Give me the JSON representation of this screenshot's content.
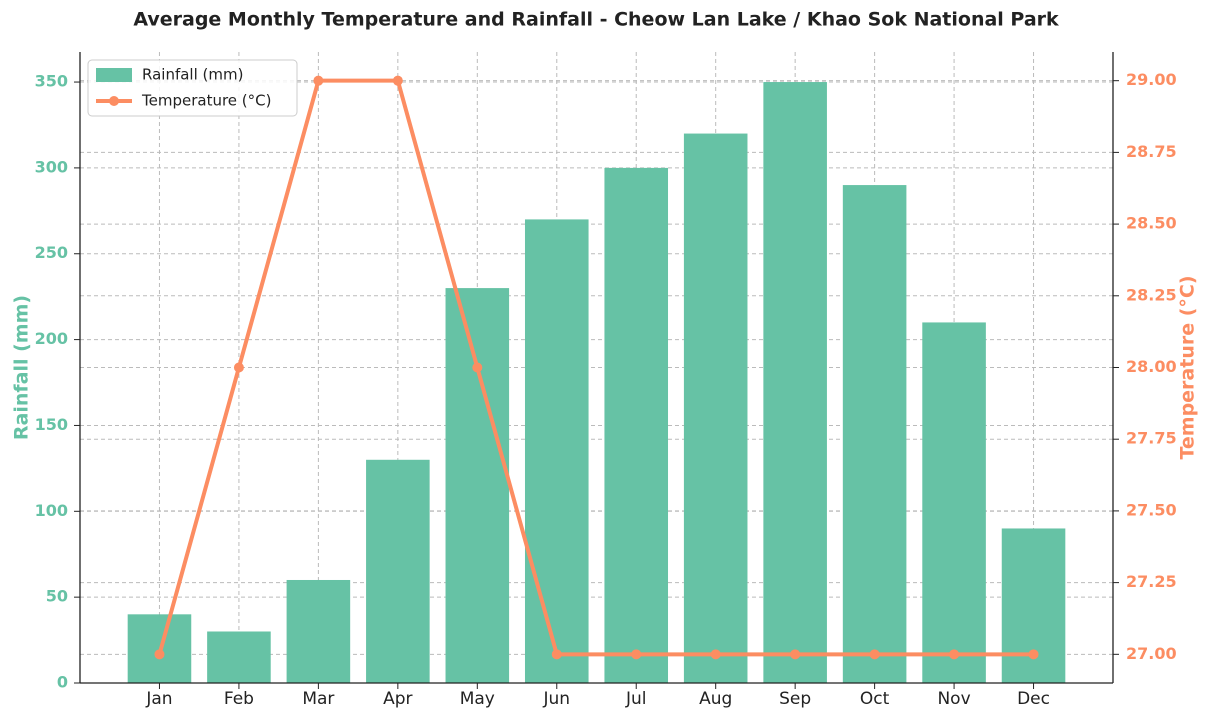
{
  "chart_data": {
    "type": "combo",
    "title": "Average Monthly Temperature and Rainfall - Cheow Lan Lake / Khao Sok National Park",
    "categories": [
      "Jan",
      "Feb",
      "Mar",
      "Apr",
      "May",
      "Jun",
      "Jul",
      "Aug",
      "Sep",
      "Oct",
      "Nov",
      "Dec"
    ],
    "series": [
      {
        "name": "Rainfall (mm)",
        "type": "bar",
        "color": "#66c2a5",
        "values": [
          40,
          30,
          60,
          130,
          230,
          270,
          300,
          320,
          350,
          290,
          210,
          90
        ]
      },
      {
        "name": "Temperature (°C)",
        "type": "line",
        "axis": "y2",
        "color": "#fc8d62",
        "values": [
          27,
          28,
          29,
          29,
          28,
          27,
          27,
          27,
          27,
          27,
          27,
          27
        ]
      }
    ],
    "ylabel": "Rainfall (mm)",
    "y2label": "Temperature (°C)",
    "ylim": [
      0,
      367.5
    ],
    "yticks": [
      0,
      50,
      100,
      150,
      200,
      250,
      300,
      350
    ],
    "y2lim": [
      26.9,
      29.1
    ],
    "y2ticks": [
      {
        "value": 27,
        "label": "27.00"
      },
      {
        "value": 27.25,
        "label": "27.25"
      },
      {
        "value": 27.5,
        "label": "27.50"
      },
      {
        "value": 27.75,
        "label": "27.75"
      },
      {
        "value": 28,
        "label": "28.00"
      },
      {
        "value": 28.25,
        "label": "28.25"
      },
      {
        "value": 28.5,
        "label": "28.50"
      },
      {
        "value": 28.75,
        "label": "28.75"
      },
      {
        "value": 29,
        "label": "29.00"
      }
    ],
    "grid": true,
    "legend": "upper left"
  }
}
